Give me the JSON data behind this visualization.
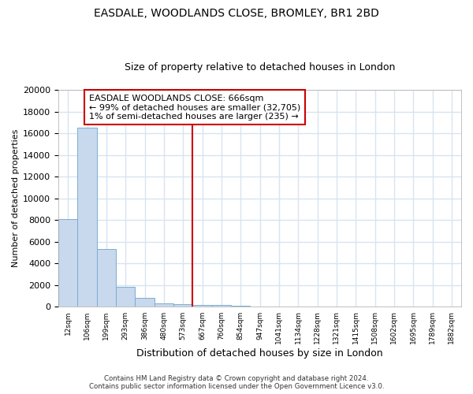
{
  "title_line1": "EASDALE, WOODLANDS CLOSE, BROMLEY, BR1 2BD",
  "title_line2": "Size of property relative to detached houses in London",
  "xlabel": "Distribution of detached houses by size in London",
  "ylabel": "Number of detached properties",
  "categories": [
    "12sqm",
    "106sqm",
    "199sqm",
    "293sqm",
    "386sqm",
    "480sqm",
    "573sqm",
    "667sqm",
    "760sqm",
    "854sqm",
    "947sqm",
    "1041sqm",
    "1134sqm",
    "1228sqm",
    "1321sqm",
    "1415sqm",
    "1508sqm",
    "1602sqm",
    "1695sqm",
    "1789sqm",
    "1882sqm"
  ],
  "values": [
    8100,
    16500,
    5300,
    1850,
    800,
    340,
    230,
    200,
    160,
    80,
    20,
    10,
    5,
    5,
    5,
    5,
    3,
    3,
    2,
    2,
    2
  ],
  "bar_color": "#c8d8ed",
  "bar_edge_color": "#7aaed0",
  "vline_x_index": 7,
  "vline_color": "#cc0000",
  "annotation_text": "EASDALE WOODLANDS CLOSE: 666sqm\n← 99% of detached houses are smaller (32,705)\n1% of semi-detached houses are larger (235) →",
  "annotation_box_color": "#ffffff",
  "annotation_border_color": "#cc0000",
  "ylim": [
    0,
    20000
  ],
  "yticks": [
    0,
    2000,
    4000,
    6000,
    8000,
    10000,
    12000,
    14000,
    16000,
    18000,
    20000
  ],
  "footer_line1": "Contains HM Land Registry data © Crown copyright and database right 2024.",
  "footer_line2": "Contains public sector information licensed under the Open Government Licence v3.0.",
  "bg_color": "#ffffff",
  "grid_color": "#d8e4f0",
  "title_fontsize": 10,
  "subtitle_fontsize": 9,
  "annotation_fontsize": 8
}
